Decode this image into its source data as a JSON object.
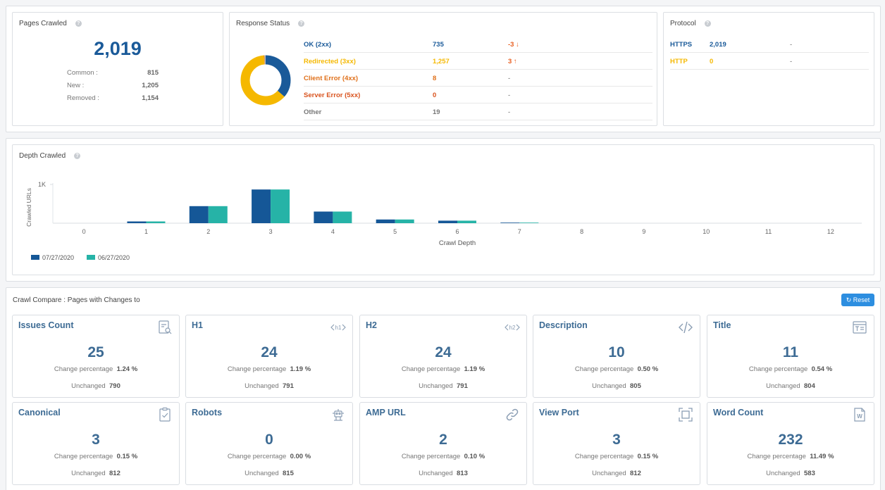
{
  "pages_crawled": {
    "title": "Pages Crawled",
    "total": "2,019",
    "rows": [
      {
        "label": "Common :",
        "value": "815"
      },
      {
        "label": "New :",
        "value": "1,205"
      },
      {
        "label": "Removed :",
        "value": "1,154"
      }
    ]
  },
  "response_status": {
    "title": "Response Status",
    "donut": [
      {
        "name": "OK (2xx)",
        "value": 735,
        "color": "#1a5a99"
      },
      {
        "name": "Redirected (3xx)",
        "value": 1257,
        "color": "#f5b800"
      },
      {
        "name": "Client Error (4xx)",
        "value": 8,
        "color": "#e0701a"
      },
      {
        "name": "Server Error (5xx)",
        "value": 0,
        "color": "#d9531e"
      },
      {
        "name": "Other",
        "value": 19,
        "color": "#bbbbbb"
      }
    ],
    "rows": [
      {
        "label": "OK (2xx)",
        "count": "735",
        "delta": "-3",
        "dir": "down",
        "color": "#1a5a99"
      },
      {
        "label": "Redirected (3xx)",
        "count": "1,257",
        "delta": "3",
        "dir": "up",
        "color": "#f5b800"
      },
      {
        "label": "Client Error (4xx)",
        "count": "8",
        "delta": "-",
        "dir": "",
        "color": "#e0701a"
      },
      {
        "label": "Server Error (5xx)",
        "count": "0",
        "delta": "-",
        "dir": "",
        "color": "#d9531e"
      },
      {
        "label": "Other",
        "count": "19",
        "delta": "-",
        "dir": "",
        "color": "#777777"
      }
    ],
    "delta_color": "#e85d1f"
  },
  "protocol": {
    "title": "Protocol",
    "rows": [
      {
        "label": "HTTPS",
        "count": "2,019",
        "delta": "-",
        "color": "#1a5a99"
      },
      {
        "label": "HTTP",
        "count": "0",
        "delta": "-",
        "color": "#f5b800"
      }
    ]
  },
  "depth_crawled": {
    "title": "Depth Crawled",
    "chart_data": {
      "type": "bar",
      "categories": [
        "0",
        "1",
        "2",
        "3",
        "4",
        "5",
        "6",
        "7",
        "8",
        "9",
        "10",
        "11",
        "12"
      ],
      "series": [
        {
          "name": "07/27/2020",
          "color": "#155797",
          "values": [
            0,
            45,
            440,
            870,
            300,
            95,
            65,
            15,
            0,
            0,
            0,
            0,
            0
          ]
        },
        {
          "name": "06/27/2020",
          "color": "#26b3a7",
          "values": [
            0,
            45,
            440,
            870,
            300,
            95,
            65,
            15,
            0,
            0,
            0,
            0,
            0
          ]
        }
      ],
      "xlabel": "Crawl Depth",
      "ylabel": "Crawled URLs",
      "yticks": [
        "1K"
      ],
      "ylim": [
        0,
        1000
      ],
      "legend_position": "bottom-left"
    }
  },
  "crawl_compare": {
    "title": "Crawl Compare : Pages with Changes to",
    "reset_label": "Reset",
    "pct_label": "Change percentage",
    "unchanged_label": "Unchanged",
    "cards": [
      {
        "title": "Issues Count",
        "icon": "report-search-icon",
        "value": "25",
        "pct": "1.24 %",
        "unchanged": "790"
      },
      {
        "title": "H1",
        "icon": "h1-tag-icon",
        "value": "24",
        "pct": "1.19 %",
        "unchanged": "791"
      },
      {
        "title": "H2",
        "icon": "h2-tag-icon",
        "value": "24",
        "pct": "1.19 %",
        "unchanged": "791"
      },
      {
        "title": "Description",
        "icon": "code-icon",
        "value": "10",
        "pct": "0.50 %",
        "unchanged": "805"
      },
      {
        "title": "Title",
        "icon": "title-icon",
        "value": "11",
        "pct": "0.54 %",
        "unchanged": "804"
      },
      {
        "title": "Canonical",
        "icon": "clipboard-check-icon",
        "value": "3",
        "pct": "0.15 %",
        "unchanged": "812"
      },
      {
        "title": "Robots",
        "icon": "robot-icon",
        "value": "0",
        "pct": "0.00 %",
        "unchanged": "815"
      },
      {
        "title": "AMP URL",
        "icon": "link-icon",
        "value": "2",
        "pct": "0.10 %",
        "unchanged": "813"
      },
      {
        "title": "View Port",
        "icon": "viewport-icon",
        "value": "3",
        "pct": "0.15 %",
        "unchanged": "812"
      },
      {
        "title": "Word Count",
        "icon": "word-document-icon",
        "value": "232",
        "pct": "11.49 %",
        "unchanged": "583"
      }
    ]
  }
}
